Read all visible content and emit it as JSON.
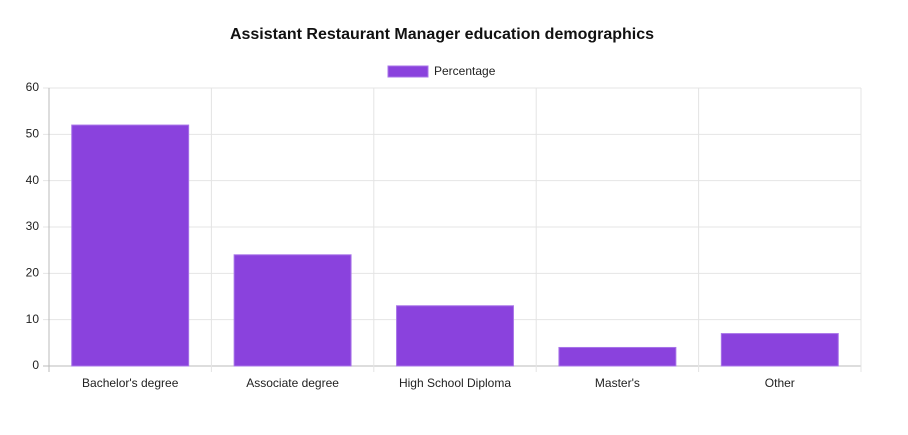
{
  "chart_data": {
    "type": "bar",
    "title": "Assistant Restaurant Manager education demographics",
    "categories": [
      "Bachelor's degree",
      "Associate degree",
      "High School Diploma",
      "Master's",
      "Other"
    ],
    "series": [
      {
        "name": "Percentage",
        "color": "#8a42dd",
        "values": [
          52,
          24,
          13,
          4,
          7
        ]
      }
    ],
    "ylim": [
      0,
      60
    ],
    "yticks": [
      0,
      10,
      20,
      30,
      40,
      50,
      60
    ],
    "grid": true,
    "legend": "top"
  }
}
